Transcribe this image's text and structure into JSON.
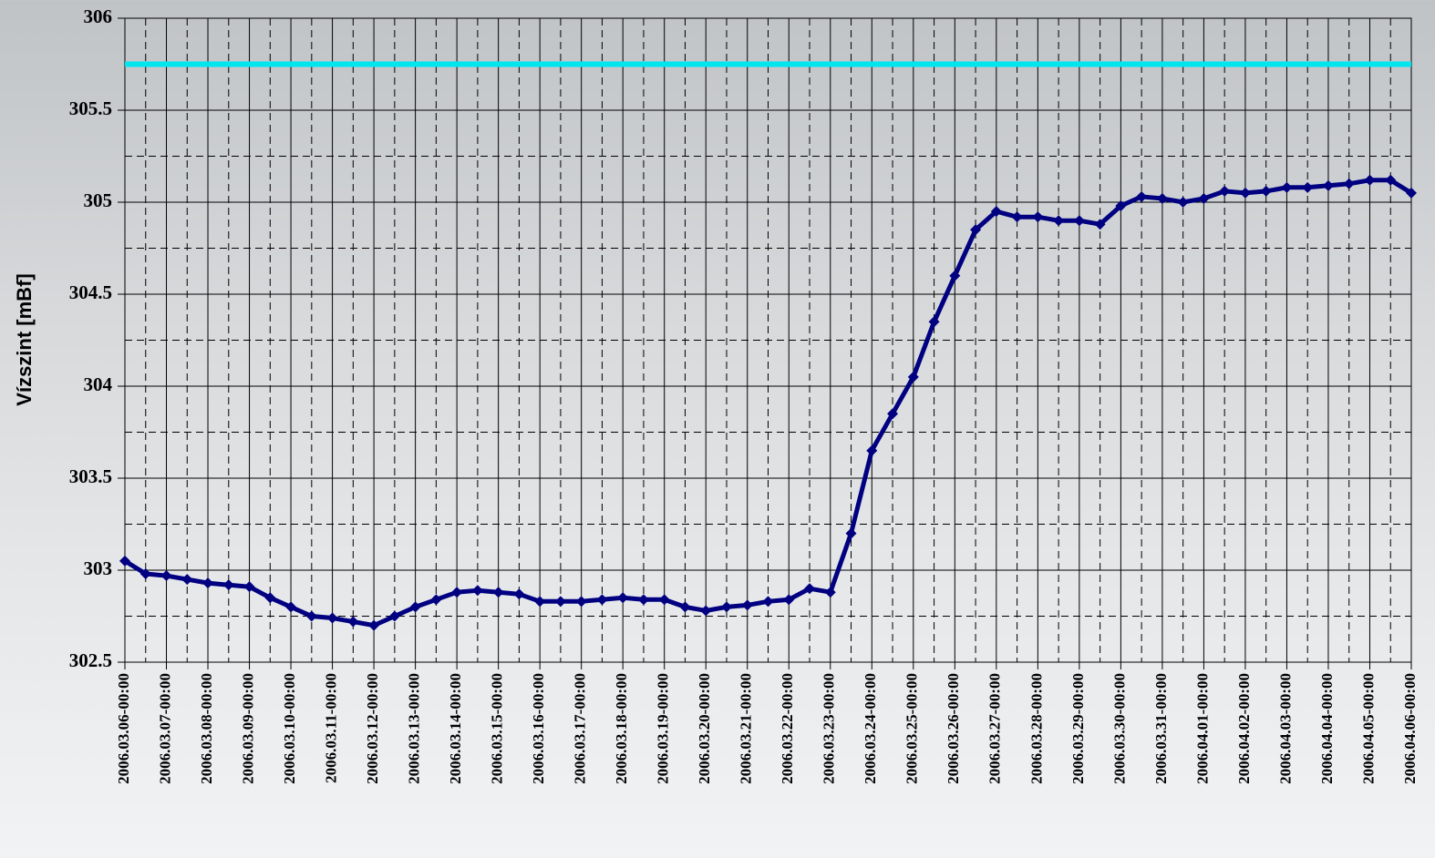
{
  "chart_data": {
    "type": "line",
    "y_label": "Vízszint [mBf]",
    "x": [
      "2006.03.06-00:00",
      "2006.03.06-12:00",
      "2006.03.07-00:00",
      "2006.03.07-12:00",
      "2006.03.08-00:00",
      "2006.03.08-12:00",
      "2006.03.09-00:00",
      "2006.03.09-12:00",
      "2006.03.10-00:00",
      "2006.03.10-12:00",
      "2006.03.11-00:00",
      "2006.03.11-12:00",
      "2006.03.12-00:00",
      "2006.03.12-12:00",
      "2006.03.13-00:00",
      "2006.03.13-12:00",
      "2006.03.14-00:00",
      "2006.03.14-12:00",
      "2006.03.15-00:00",
      "2006.03.15-12:00",
      "2006.03.16-00:00",
      "2006.03.16-12:00",
      "2006.03.17-00:00",
      "2006.03.17-12:00",
      "2006.03.18-00:00",
      "2006.03.18-12:00",
      "2006.03.19-00:00",
      "2006.03.19-12:00",
      "2006.03.20-00:00",
      "2006.03.20-12:00",
      "2006.03.21-00:00",
      "2006.03.21-12:00",
      "2006.03.22-00:00",
      "2006.03.22-12:00",
      "2006.03.23-00:00",
      "2006.03.23-12:00",
      "2006.03.24-00:00",
      "2006.03.24-12:00",
      "2006.03.25-00:00",
      "2006.03.25-12:00",
      "2006.03.26-00:00",
      "2006.03.26-12:00",
      "2006.03.27-00:00",
      "2006.03.27-12:00",
      "2006.03.28-00:00",
      "2006.03.28-12:00",
      "2006.03.29-00:00",
      "2006.03.29-12:00",
      "2006.03.30-00:00",
      "2006.03.30-12:00",
      "2006.03.31-00:00",
      "2006.03.31-12:00",
      "2006.04.01-00:00",
      "2006.04.01-12:00",
      "2006.04.02-00:00",
      "2006.04.02-12:00",
      "2006.04.03-00:00",
      "2006.04.03-12:00",
      "2006.04.04-00:00",
      "2006.04.04-12:00",
      "2006.04.05-00:00",
      "2006.04.05-12:00",
      "2006.04.06-00:00"
    ],
    "series": [
      {
        "color": "#000080",
        "values": [
          303.05,
          302.98,
          302.97,
          302.95,
          302.93,
          302.92,
          302.91,
          302.85,
          302.8,
          302.75,
          302.74,
          302.72,
          302.7,
          302.75,
          302.8,
          302.84,
          302.88,
          302.89,
          302.88,
          302.87,
          302.83,
          302.83,
          302.83,
          302.84,
          302.85,
          302.84,
          302.84,
          302.8,
          302.78,
          302.8,
          302.81,
          302.83,
          302.84,
          302.9,
          302.88,
          303.2,
          303.65,
          303.85,
          304.05,
          304.35,
          304.6,
          304.85,
          304.95,
          304.92,
          304.92,
          304.9,
          304.9,
          304.88,
          304.98,
          305.03,
          305.02,
          305.0,
          305.02,
          305.06,
          305.05,
          305.06,
          305.08,
          305.08,
          305.09,
          305.1,
          305.12,
          305.12,
          305.05
        ]
      }
    ],
    "reference_line": {
      "value": 305.75,
      "color": "#00e5ee"
    },
    "xlim": [
      "2006.03.06-00:00",
      "2006.04.06-00:00"
    ],
    "xticks": [
      "2006.03.06-00:00",
      "2006.03.07-00:00",
      "2006.03.08-00:00",
      "2006.03.09-00:00",
      "2006.03.10-00:00",
      "2006.03.11-00:00",
      "2006.03.12-00:00",
      "2006.03.13-00:00",
      "2006.03.14-00:00",
      "2006.03.15-00:00",
      "2006.03.16-00:00",
      "2006.03.17-00:00",
      "2006.03.18-00:00",
      "2006.03.19-00:00",
      "2006.03.20-00:00",
      "2006.03.21-00:00",
      "2006.03.22-00:00",
      "2006.03.23-00:00",
      "2006.03.24-00:00",
      "2006.03.25-00:00",
      "2006.03.26-00:00",
      "2006.03.27-00:00",
      "2006.03.28-00:00",
      "2006.03.29-00:00",
      "2006.03.30-00:00",
      "2006.03.31-00:00",
      "2006.04.01-00:00",
      "2006.04.02-00:00",
      "2006.04.03-00:00",
      "2006.04.04-00:00",
      "2006.04.05-00:00",
      "2006.04.06-00:00"
    ],
    "ylim": [
      302.5,
      306
    ],
    "yticks": [
      302.5,
      303,
      303.5,
      304,
      304.5,
      305,
      305.5,
      306
    ],
    "grid": true
  }
}
